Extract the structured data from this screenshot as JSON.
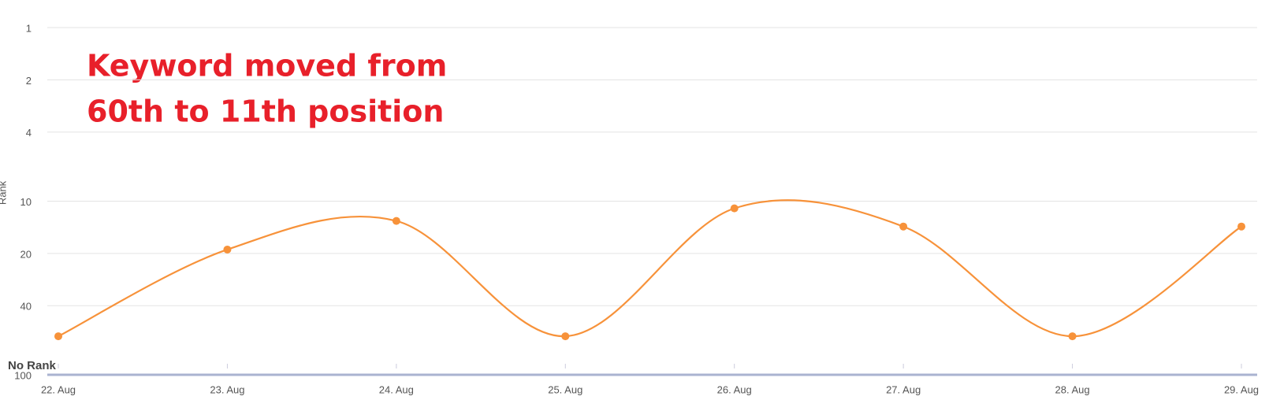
{
  "chart_data": {
    "type": "line",
    "annotation": [
      "Keyword moved from",
      "60th to 11th position"
    ],
    "y_label": "Rank",
    "no_rank_label": "No Rank",
    "categories": [
      "22. Aug",
      "23. Aug",
      "24. Aug",
      "25. Aug",
      "26. Aug",
      "27. Aug",
      "28. Aug",
      "29. Aug"
    ],
    "series": [
      {
        "name": "Rank",
        "color": "#f7923a",
        "values": [
          60,
          19,
          13,
          60,
          11,
          14,
          60,
          14
        ]
      }
    ],
    "ylim": [
      1,
      100
    ],
    "yticks": [
      1,
      2,
      4,
      10,
      20,
      40,
      100
    ],
    "yscale": "log",
    "y_inverted": true,
    "grid": true
  }
}
